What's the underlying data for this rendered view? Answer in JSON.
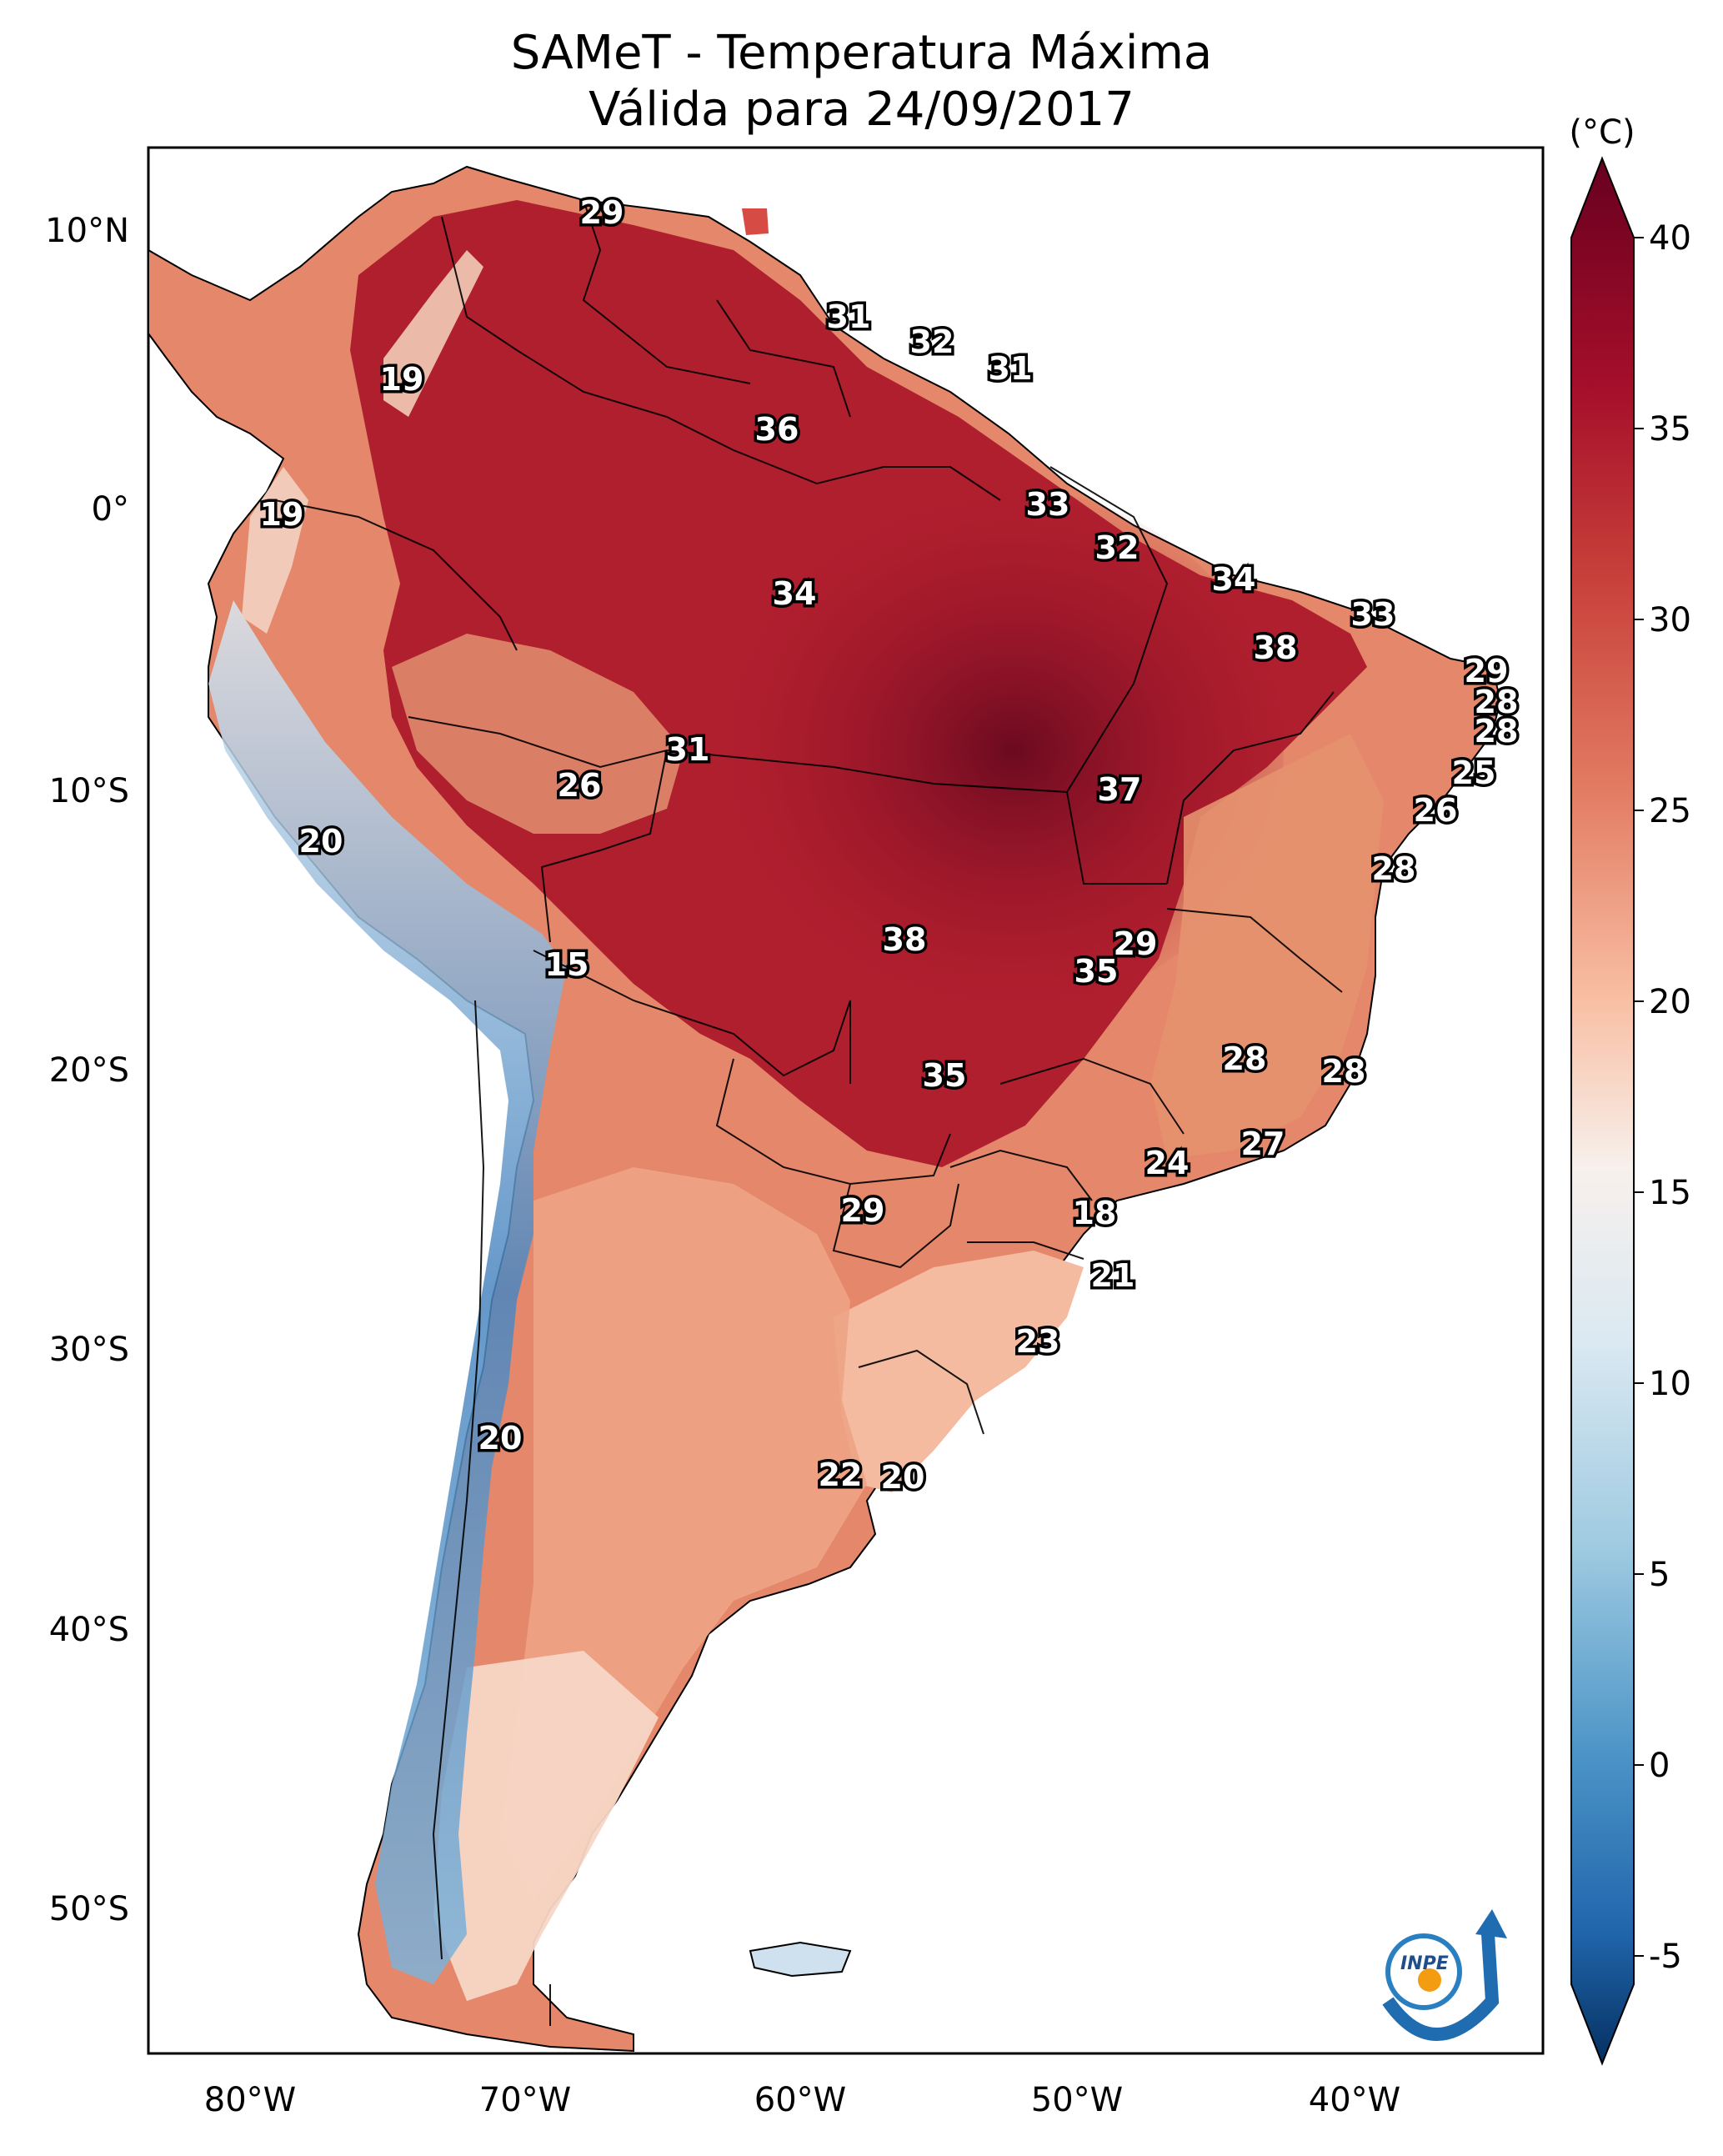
{
  "title": {
    "line1": "SAMeT - Temperatura Máxima",
    "line2": "Válida para 24/09/2017"
  },
  "map": {
    "lat_ticks": [
      "10°N",
      "0°",
      "10°S",
      "20°S",
      "30°S",
      "40°S",
      "50°S"
    ],
    "lon_ticks": [
      "80°W",
      "70°W",
      "60°W",
      "50°W",
      "40°W"
    ],
    "temperature_labels": [
      "29",
      "19",
      "31",
      "32",
      "31",
      "36",
      "19",
      "33",
      "32",
      "34",
      "34",
      "33",
      "38",
      "29",
      "28",
      "28",
      "31",
      "26",
      "37",
      "25",
      "26",
      "20",
      "28",
      "38",
      "29",
      "15",
      "35",
      "28",
      "28",
      "35",
      "24",
      "27",
      "29",
      "18",
      "21",
      "23",
      "20",
      "22",
      "20"
    ]
  },
  "colorbar": {
    "unit": "(°C)",
    "ticks": [
      "40",
      "35",
      "30",
      "25",
      "20",
      "15",
      "10",
      "5",
      "0",
      "-5"
    ],
    "colors": [
      "#67001f",
      "#b2182b",
      "#d6604d",
      "#f4a582",
      "#fddbc7",
      "#f7f7f7",
      "#d1e5f0",
      "#92c5de",
      "#4393c3",
      "#2166ac",
      "#053061"
    ]
  },
  "logo": {
    "text": "INPE"
  }
}
